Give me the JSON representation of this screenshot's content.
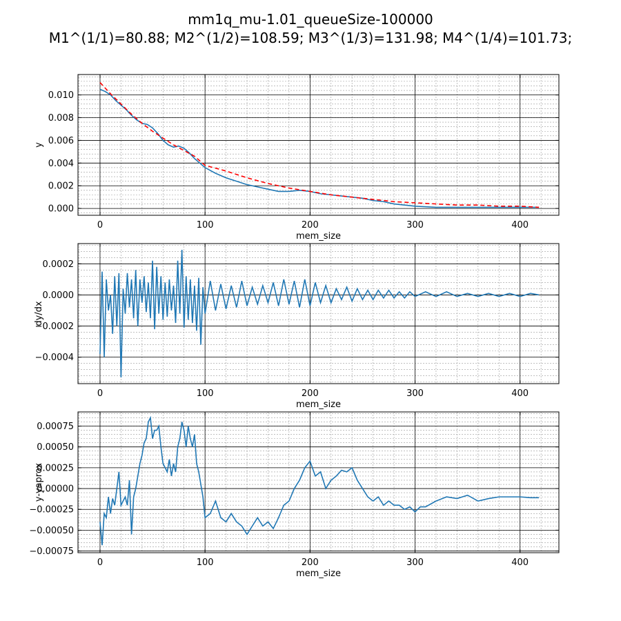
{
  "figure": {
    "title_line1": "mm1q_mu-1.01_queueSize-100000",
    "title_line2": "M1^(1/1)=80.88; M2^(1/2)=108.59; M3^(1/3)=131.98; M4^(1/4)=101.73;"
  },
  "chart_data": [
    {
      "type": "line",
      "title": "",
      "xlabel": "mem_size",
      "ylabel": "y",
      "xlim": [
        -21,
        437
      ],
      "ylim": [
        -0.0006,
        0.0118
      ],
      "xticks": [
        0,
        100,
        200,
        300,
        400
      ],
      "yticks": [
        0.0,
        0.002,
        0.004,
        0.006,
        0.008,
        0.01
      ],
      "ytick_labels": [
        "0.000",
        "0.002",
        "0.004",
        "0.006",
        "0.008",
        "0.010"
      ],
      "grid": true,
      "series": [
        {
          "name": "",
          "color": "#1f77b4",
          "style": "solid",
          "x": [
            0,
            5,
            10,
            15,
            20,
            25,
            30,
            35,
            40,
            45,
            50,
            55,
            60,
            65,
            70,
            75,
            80,
            85,
            90,
            95,
            100,
            110,
            120,
            130,
            140,
            150,
            160,
            170,
            180,
            190,
            200,
            210,
            220,
            230,
            240,
            250,
            260,
            270,
            280,
            290,
            300,
            320,
            340,
            360,
            380,
            400,
            418
          ],
          "y": [
            0.0105,
            0.0103,
            0.01,
            0.0095,
            0.0091,
            0.0087,
            0.0082,
            0.0078,
            0.0075,
            0.0074,
            0.0071,
            0.0066,
            0.006,
            0.0056,
            0.0054,
            0.0055,
            0.0053,
            0.0049,
            0.0044,
            0.004,
            0.0036,
            0.0031,
            0.0027,
            0.0024,
            0.0021,
            0.0019,
            0.0017,
            0.0015,
            0.0015,
            0.0016,
            0.0015,
            0.0013,
            0.0012,
            0.0011,
            0.001,
            0.0009,
            0.0007,
            0.0006,
            0.0004,
            0.0003,
            0.0002,
            0.0001,
            0.0001,
            0.0001,
            0.0001,
            0.0001,
            0.0001
          ]
        },
        {
          "name": "",
          "color": "#ff0000",
          "style": "dashed",
          "x": [
            0,
            10,
            20,
            30,
            40,
            50,
            60,
            70,
            80,
            90,
            100,
            120,
            140,
            160,
            180,
            200,
            220,
            240,
            260,
            280,
            300,
            320,
            340,
            360,
            380,
            400,
            418
          ],
          "y": [
            0.0111,
            0.0101,
            0.0092,
            0.0083,
            0.0075,
            0.0068,
            0.0062,
            0.0056,
            0.0051,
            0.0046,
            0.0038,
            0.0033,
            0.0027,
            0.0022,
            0.0018,
            0.0015,
            0.0012,
            0.001,
            0.0008,
            0.0006,
            0.0005,
            0.0004,
            0.0003,
            0.0003,
            0.0002,
            0.0002,
            0.0001
          ]
        }
      ]
    },
    {
      "type": "line",
      "title": "",
      "xlabel": "mem_size",
      "ylabel": "dy/dx",
      "xlim": [
        -21,
        437
      ],
      "ylim": [
        -0.00057,
        0.00033
      ],
      "xticks": [
        0,
        100,
        200,
        300,
        400
      ],
      "yticks": [
        -0.0004,
        -0.0002,
        0.0,
        0.0002
      ],
      "ytick_labels": [
        "−0.0004",
        "−0.0002",
        "0.0000",
        "0.0002"
      ],
      "grid": true,
      "series": [
        {
          "name": "",
          "color": "#1f77b4",
          "style": "solid",
          "x": [
            0,
            2,
            4,
            6,
            8,
            10,
            12,
            14,
            16,
            18,
            20,
            22,
            24,
            26,
            28,
            30,
            32,
            34,
            36,
            38,
            40,
            42,
            44,
            46,
            48,
            50,
            52,
            54,
            56,
            58,
            60,
            62,
            64,
            66,
            68,
            70,
            72,
            74,
            76,
            78,
            80,
            82,
            84,
            86,
            88,
            90,
            92,
            94,
            96,
            98,
            100,
            105,
            110,
            115,
            120,
            125,
            130,
            135,
            140,
            145,
            150,
            155,
            160,
            165,
            170,
            175,
            180,
            185,
            190,
            195,
            200,
            205,
            210,
            215,
            220,
            225,
            230,
            235,
            240,
            245,
            250,
            255,
            260,
            265,
            270,
            275,
            280,
            285,
            290,
            295,
            300,
            310,
            320,
            330,
            340,
            350,
            360,
            370,
            380,
            390,
            400,
            410,
            418
          ],
          "y": [
            -0.00038,
            0.00015,
            -0.0004,
            0.0001,
            -0.0001,
            0.0,
            -0.00025,
            0.00012,
            -0.0002,
            0.00014,
            -0.00053,
            4e-05,
            -0.00012,
            0.00014,
            -8e-05,
            0.0001,
            -0.00015,
            0.00016,
            -0.0002,
            0.0001,
            -5e-05,
            0.00012,
            -0.00011,
            8e-05,
            -0.00015,
            0.00022,
            -0.00022,
            0.00018,
            -0.00012,
            0.00012,
            -0.00016,
            8e-05,
            -0.00014,
            0.0001,
            -0.0001,
            6e-05,
            -0.00018,
            0.00022,
            -0.00012,
            0.00029,
            -0.00021,
            0.00012,
            -0.00016,
            0.0001,
            -0.00018,
            6e-05,
            -0.00023,
            0.00011,
            -0.00032,
            5e-05,
            -0.00012,
            9e-05,
            -0.0001,
            7e-05,
            -9e-05,
            6e-05,
            -8e-05,
            9e-05,
            -7e-05,
            5e-05,
            -6e-05,
            6e-05,
            -5e-05,
            8e-05,
            -7e-05,
            0.0001,
            -6e-05,
            9e-05,
            -8e-05,
            0.0001,
            -7e-05,
            8e-05,
            -5e-05,
            6e-05,
            -5e-05,
            4e-05,
            -3e-05,
            5e-05,
            -4e-05,
            4e-05,
            -3e-05,
            3e-05,
            -3e-05,
            3e-05,
            -2e-05,
            3e-05,
            -2e-05,
            2e-05,
            -2e-05,
            2e-05,
            -1e-05,
            2e-05,
            -1e-05,
            2e-05,
            -1e-05,
            1e-05,
            -1e-05,
            1e-05,
            -1e-05,
            1e-05,
            -1e-05,
            1e-05,
            0.0
          ]
        }
      ]
    },
    {
      "type": "line",
      "title": "",
      "xlabel": "mem_size",
      "ylabel": "y-yaprox",
      "xlim": [
        -21,
        437
      ],
      "ylim": [
        -0.00077,
        0.00092
      ],
      "xticks": [
        0,
        100,
        200,
        300,
        400
      ],
      "yticks": [
        -0.00075,
        -0.0005,
        -0.00025,
        0.0,
        0.00025,
        0.0005,
        0.00075
      ],
      "ytick_labels": [
        "−0.00075",
        "−0.00050",
        "−0.00025",
        "0.00000",
        "0.00025",
        "0.00050",
        "0.00075"
      ],
      "grid": true,
      "series": [
        {
          "name": "",
          "color": "#1f77b4",
          "style": "solid",
          "x": [
            0,
            2,
            4,
            6,
            8,
            10,
            12,
            14,
            16,
            18,
            20,
            22,
            24,
            26,
            28,
            30,
            32,
            34,
            36,
            38,
            40,
            42,
            44,
            46,
            48,
            50,
            52,
            54,
            56,
            58,
            60,
            62,
            64,
            66,
            68,
            70,
            72,
            74,
            76,
            78,
            80,
            82,
            84,
            86,
            88,
            90,
            92,
            94,
            96,
            98,
            100,
            105,
            110,
            115,
            120,
            125,
            130,
            135,
            140,
            145,
            150,
            155,
            160,
            165,
            170,
            175,
            180,
            185,
            190,
            195,
            200,
            205,
            210,
            215,
            220,
            225,
            230,
            235,
            240,
            245,
            250,
            255,
            260,
            265,
            270,
            275,
            280,
            285,
            290,
            295,
            300,
            305,
            310,
            320,
            330,
            340,
            350,
            360,
            370,
            380,
            390,
            400,
            410,
            418
          ],
          "y": [
            -0.0004,
            -0.00068,
            -0.0003,
            -0.00035,
            -0.0001,
            -0.0003,
            -0.00012,
            -0.0002,
            0.0,
            0.0002,
            -0.0002,
            -0.00015,
            -0.0001,
            -0.0002,
            0.0001,
            -0.00055,
            -0.0001,
            0.0,
            0.00015,
            0.0003,
            0.0004,
            0.00055,
            0.0006,
            0.0008,
            0.00085,
            0.0006,
            0.0007,
            0.0007,
            0.00075,
            0.0005,
            0.0003,
            0.00025,
            0.0002,
            0.00035,
            0.00015,
            0.0003,
            0.0002,
            0.0005,
            0.0006,
            0.0008,
            0.0007,
            0.0005,
            0.00075,
            0.0006,
            0.0005,
            0.00065,
            0.0003,
            0.0002,
            5e-05,
            -0.0001,
            -0.00035,
            -0.0003,
            -0.00015,
            -0.00035,
            -0.0004,
            -0.0003,
            -0.0004,
            -0.00045,
            -0.00055,
            -0.00045,
            -0.00035,
            -0.00045,
            -0.0004,
            -0.00048,
            -0.00035,
            -0.0002,
            -0.00015,
            0.0,
            0.0001,
            0.00025,
            0.00033,
            0.00015,
            0.0002,
            0.0,
            0.0001,
            0.00015,
            0.00022,
            0.0002,
            0.00025,
            0.0001,
            0.0,
            -0.0001,
            -0.00015,
            -0.0001,
            -0.0002,
            -0.00015,
            -0.0002,
            -0.0002,
            -0.00025,
            -0.00022,
            -0.00028,
            -0.00022,
            -0.00022,
            -0.00015,
            -0.0001,
            -0.00012,
            -8e-05,
            -0.00015,
            -0.00012,
            -0.0001,
            -0.0001,
            -0.0001,
            -0.00011,
            -0.00011
          ]
        }
      ]
    }
  ]
}
